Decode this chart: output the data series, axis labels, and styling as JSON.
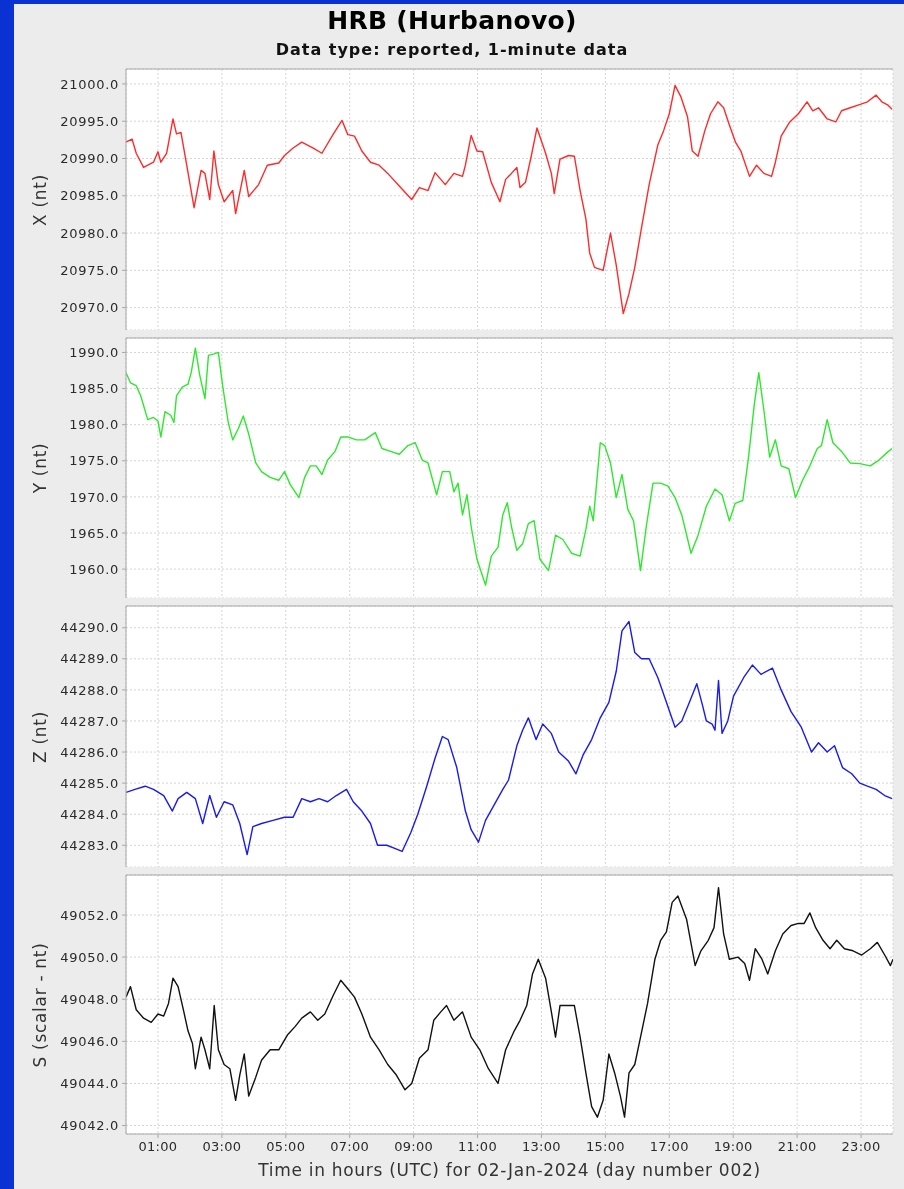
{
  "chart_data": [
    {
      "type": "line",
      "title": "HRB (Hurbanovo)",
      "subtitle": "Data type: reported, 1-minute data",
      "ylabel": "X (nt)",
      "tick_labels": "y",
      "grid": true,
      "xlim": [
        0,
        24
      ],
      "xticks": [
        {
          "value": 1,
          "label": null
        },
        {
          "value": 3,
          "label": null
        },
        {
          "value": 5,
          "label": null
        },
        {
          "value": 7,
          "label": null
        },
        {
          "value": 9,
          "label": null
        },
        {
          "value": 11,
          "label": null
        },
        {
          "value": 13,
          "label": null
        },
        {
          "value": 15,
          "label": null
        },
        {
          "value": 17,
          "label": null
        },
        {
          "value": 19,
          "label": null
        },
        {
          "value": 21,
          "label": null
        },
        {
          "value": 23,
          "label": null
        }
      ],
      "ylim": [
        20967,
        21002
      ],
      "yticks": [
        {
          "value": 20970,
          "label": "20970.0"
        },
        {
          "value": 20975,
          "label": "20975.0"
        },
        {
          "value": 20980,
          "label": "20980.0"
        },
        {
          "value": 20985,
          "label": "20985.0"
        },
        {
          "value": 20990,
          "label": "20990.0"
        },
        {
          "value": 20995,
          "label": "20995.0"
        },
        {
          "value": 21000,
          "label": "21000.0"
        }
      ],
      "x": [
        0,
        0.19,
        0.32,
        0.55,
        0.86,
        1.0,
        1.09,
        1.27,
        1.47,
        1.58,
        1.72,
        1.9,
        2.13,
        2.35,
        2.47,
        2.62,
        2.75,
        2.89,
        3.07,
        3.34,
        3.43,
        3.7,
        3.84,
        4.15,
        4.42,
        4.78,
        4.96,
        5.23,
        5.5,
        5.86,
        6.13,
        6.49,
        6.76,
        6.94,
        7.15,
        7.38,
        7.65,
        7.92,
        8.19,
        8.55,
        8.94,
        9.18,
        9.45,
        9.67,
        9.99,
        10.26,
        10.53,
        10.62,
        10.8,
        10.98,
        11.16,
        11.43,
        11.7,
        11.88,
        12.06,
        12.23,
        12.33,
        12.5,
        12.68,
        12.86,
        13.13,
        13.31,
        13.4,
        13.58,
        13.85,
        14.03,
        14.21,
        14.39,
        14.51,
        14.66,
        14.93,
        15.16,
        15.34,
        15.56,
        15.74,
        15.92,
        16.13,
        16.37,
        16.64,
        16.82,
        17.0,
        17.18,
        17.36,
        17.57,
        17.72,
        17.9,
        18.11,
        18.29,
        18.52,
        18.7,
        18.88,
        19.07,
        19.24,
        19.51,
        19.73,
        19.96,
        20.2,
        20.32,
        20.5,
        20.77,
        21.04,
        21.31,
        21.49,
        21.67,
        21.94,
        22.21,
        22.39,
        22.66,
        22.93,
        23.2,
        23.47,
        23.65,
        23.83,
        23.97
      ],
      "series": [
        {
          "color": "#ff2a2a",
          "values": [
            20992.2,
            20992.6,
            20990.7,
            20988.8,
            20989.5,
            20990.9,
            20989.5,
            20990.7,
            20995.3,
            20993.3,
            20993.5,
            20989.1,
            20983.4,
            20988.4,
            20988.0,
            20984.5,
            20991.0,
            20986.5,
            20984.2,
            20985.7,
            20982.6,
            20988.4,
            20984.9,
            20986.5,
            20989.1,
            20989.4,
            20990.4,
            20991.4,
            20992.2,
            20991.4,
            20990.7,
            20993.3,
            20995.1,
            20993.2,
            20993.0,
            20991.0,
            20989.5,
            20989.1,
            20988.0,
            20986.3,
            20984.5,
            20986.1,
            20985.7,
            20988.1,
            20986.5,
            20988.0,
            20987.6,
            20989.1,
            20993.1,
            20991.0,
            20990.9,
            20986.8,
            20984.2,
            20987.2,
            20988.0,
            20988.8,
            20986.1,
            20986.8,
            20990.3,
            20994.1,
            20990.7,
            20988.0,
            20985.3,
            20989.9,
            20990.4,
            20990.3,
            20985.7,
            20981.9,
            20977.3,
            20975.4,
            20975.0,
            20980.0,
            20975.7,
            20969.2,
            20971.9,
            20975.4,
            20980.7,
            20986.5,
            20991.8,
            20993.7,
            20996.0,
            20999.8,
            20998.3,
            20995.6,
            20991.0,
            20990.3,
            20993.7,
            20996.0,
            20997.6,
            20996.8,
            20994.5,
            20992.2,
            20991.0,
            20987.6,
            20989.1,
            20988.0,
            20987.6,
            20989.5,
            20993.0,
            20994.9,
            20996.0,
            20997.6,
            20996.4,
            20996.8,
            20995.3,
            20994.9,
            20996.4,
            20996.8,
            20997.2,
            20997.6,
            20998.5,
            20997.6,
            20997.2,
            20996.6
          ]
        }
      ]
    },
    {
      "type": "line",
      "ylabel": "Y (nt)",
      "tick_labels": "y",
      "grid": true,
      "xlim": [
        0,
        24
      ],
      "xticks": [
        {
          "value": 1,
          "label": null
        },
        {
          "value": 3,
          "label": null
        },
        {
          "value": 5,
          "label": null
        },
        {
          "value": 7,
          "label": null
        },
        {
          "value": 9,
          "label": null
        },
        {
          "value": 11,
          "label": null
        },
        {
          "value": 13,
          "label": null
        },
        {
          "value": 15,
          "label": null
        },
        {
          "value": 17,
          "label": null
        },
        {
          "value": 19,
          "label": null
        },
        {
          "value": 21,
          "label": null
        },
        {
          "value": 23,
          "label": null
        }
      ],
      "ylim": [
        1956,
        1992
      ],
      "yticks": [
        {
          "value": 1960,
          "label": "1960.0"
        },
        {
          "value": 1965,
          "label": "1965.0"
        },
        {
          "value": 1970,
          "label": "1970.0"
        },
        {
          "value": 1975,
          "label": "1975.0"
        },
        {
          "value": 1980,
          "label": "1980.0"
        },
        {
          "value": 1985,
          "label": "1985.0"
        },
        {
          "value": 1990,
          "label": "1990.0"
        }
      ],
      "x": [
        0,
        0.14,
        0.32,
        0.46,
        0.68,
        0.86,
        1.0,
        1.09,
        1.22,
        1.4,
        1.5,
        1.58,
        1.76,
        1.94,
        2.04,
        2.17,
        2.31,
        2.47,
        2.58,
        2.76,
        2.89,
        3.03,
        3.2,
        3.34,
        3.52,
        3.67,
        3.84,
        4.06,
        4.24,
        4.51,
        4.78,
        4.96,
        5.14,
        5.41,
        5.59,
        5.77,
        5.95,
        6.13,
        6.31,
        6.54,
        6.72,
        6.94,
        7.21,
        7.47,
        7.8,
        8.01,
        8.28,
        8.55,
        8.82,
        9.05,
        9.27,
        9.45,
        9.72,
        9.9,
        10.13,
        10.26,
        10.39,
        10.53,
        10.67,
        10.8,
        10.98,
        11.25,
        11.43,
        11.64,
        11.79,
        11.93,
        12.06,
        12.23,
        12.41,
        12.59,
        12.77,
        12.95,
        13.22,
        13.44,
        13.67,
        13.94,
        14.21,
        14.39,
        14.51,
        14.62,
        14.84,
        14.98,
        15.16,
        15.34,
        15.52,
        15.7,
        15.88,
        16.1,
        16.28,
        16.49,
        16.73,
        16.96,
        17.18,
        17.39,
        17.68,
        17.9,
        18.16,
        18.43,
        18.65,
        18.88,
        19.06,
        19.3,
        19.48,
        19.66,
        19.8,
        19.96,
        20.14,
        20.32,
        20.5,
        20.74,
        20.95,
        21.17,
        21.4,
        21.63,
        21.76,
        21.94,
        22.12,
        22.39,
        22.66,
        22.96,
        23.29,
        23.56,
        23.83,
        23.97
      ],
      "series": [
        {
          "color": "#2ee82e",
          "values": [
            1987.2,
            1985.8,
            1985.4,
            1984.0,
            1980.7,
            1981.0,
            1980.5,
            1978.3,
            1981.8,
            1981.3,
            1980.3,
            1984.0,
            1985.2,
            1985.6,
            1987.2,
            1990.6,
            1986.8,
            1983.6,
            1989.6,
            1989.8,
            1990.0,
            1985.2,
            1980.3,
            1977.9,
            1979.5,
            1981.2,
            1978.7,
            1974.7,
            1973.5,
            1972.7,
            1972.3,
            1973.5,
            1971.7,
            1969.9,
            1972.7,
            1974.3,
            1974.3,
            1973.1,
            1975.1,
            1976.3,
            1978.3,
            1978.3,
            1977.9,
            1977.9,
            1978.9,
            1976.7,
            1976.3,
            1975.9,
            1977.1,
            1977.5,
            1975.1,
            1974.7,
            1970.3,
            1973.5,
            1973.5,
            1970.7,
            1971.9,
            1967.5,
            1970.3,
            1965.9,
            1961.4,
            1957.8,
            1961.8,
            1963.0,
            1967.5,
            1969.2,
            1965.9,
            1962.6,
            1963.5,
            1966.3,
            1966.7,
            1961.4,
            1959.8,
            1964.7,
            1964.1,
            1962.2,
            1961.8,
            1965.5,
            1968.7,
            1966.7,
            1977.5,
            1977.1,
            1974.7,
            1969.9,
            1973.1,
            1968.3,
            1966.7,
            1959.8,
            1965.9,
            1971.9,
            1971.9,
            1971.5,
            1969.9,
            1967.5,
            1962.2,
            1964.7,
            1968.7,
            1971.1,
            1970.3,
            1966.7,
            1969.1,
            1969.5,
            1975.5,
            1982.8,
            1987.2,
            1982.0,
            1975.5,
            1977.9,
            1974.3,
            1973.9,
            1969.9,
            1972.3,
            1974.3,
            1976.7,
            1977.1,
            1980.7,
            1977.5,
            1976.3,
            1974.7,
            1974.6,
            1974.3,
            1975.1,
            1976.2,
            1976.7
          ]
        }
      ]
    },
    {
      "type": "line",
      "ylabel": "Z (nt)",
      "tick_labels": "y",
      "grid": true,
      "xlim": [
        0,
        24
      ],
      "xticks": [
        {
          "value": 1,
          "label": null
        },
        {
          "value": 3,
          "label": null
        },
        {
          "value": 5,
          "label": null
        },
        {
          "value": 7,
          "label": null
        },
        {
          "value": 9,
          "label": null
        },
        {
          "value": 11,
          "label": null
        },
        {
          "value": 13,
          "label": null
        },
        {
          "value": 15,
          "label": null
        },
        {
          "value": 17,
          "label": null
        },
        {
          "value": 19,
          "label": null
        },
        {
          "value": 21,
          "label": null
        },
        {
          "value": 23,
          "label": null
        }
      ],
      "ylim": [
        44282.3,
        44290.7
      ],
      "yticks": [
        {
          "value": 44283,
          "label": "44283.0"
        },
        {
          "value": 44284,
          "label": "44284.0"
        },
        {
          "value": 44285,
          "label": "44285.0"
        },
        {
          "value": 44286,
          "label": "44286.0"
        },
        {
          "value": 44287,
          "label": "44287.0"
        },
        {
          "value": 44288,
          "label": "44288.0"
        },
        {
          "value": 44289,
          "label": "44289.0"
        },
        {
          "value": 44290,
          "label": "44290.0"
        }
      ],
      "x": [
        0,
        0.28,
        0.6,
        0.86,
        1.18,
        1.45,
        1.63,
        1.9,
        2.17,
        2.4,
        2.62,
        2.83,
        3.07,
        3.34,
        3.56,
        3.79,
        3.97,
        4.24,
        4.6,
        4.96,
        5.23,
        5.5,
        5.77,
        6.04,
        6.31,
        6.58,
        6.9,
        7.11,
        7.38,
        7.65,
        7.87,
        8.16,
        8.41,
        8.64,
        8.91,
        9.13,
        9.41,
        9.67,
        9.9,
        10.08,
        10.35,
        10.62,
        10.8,
        11.03,
        11.25,
        11.52,
        11.79,
        11.97,
        12.23,
        12.41,
        12.59,
        12.83,
        13.04,
        13.31,
        13.54,
        13.85,
        14.08,
        14.3,
        14.57,
        14.84,
        15.11,
        15.34,
        15.52,
        15.74,
        15.92,
        16.13,
        16.37,
        16.64,
        16.91,
        17.18,
        17.39,
        17.63,
        17.86,
        18.04,
        18.16,
        18.34,
        18.43,
        18.54,
        18.65,
        18.83,
        19.01,
        19.33,
        19.6,
        19.87,
        20.23,
        20.5,
        20.81,
        21.13,
        21.45,
        21.67,
        21.94,
        22.17,
        22.42,
        22.71,
        22.96,
        23.2,
        23.47,
        23.74,
        23.97
      ],
      "series": [
        {
          "color": "#1a1aee",
          "values": [
            44284.7,
            44284.8,
            44284.9,
            44284.8,
            44284.6,
            44284.1,
            44284.5,
            44284.7,
            44284.5,
            44283.7,
            44284.6,
            44283.9,
            44284.4,
            44284.3,
            44283.7,
            44282.7,
            44283.6,
            44283.7,
            44283.8,
            44283.9,
            44283.9,
            44284.5,
            44284.4,
            44284.5,
            44284.4,
            44284.6,
            44284.8,
            44284.4,
            44284.1,
            44283.7,
            44283.0,
            44283.0,
            44282.9,
            44282.8,
            44283.4,
            44284.0,
            44284.9,
            44285.8,
            44286.5,
            44286.4,
            44285.5,
            44284.1,
            44283.5,
            44283.1,
            44283.8,
            44284.3,
            44284.8,
            44285.1,
            44286.2,
            44286.7,
            44287.1,
            44286.4,
            44286.9,
            44286.6,
            44286.0,
            44285.7,
            44285.3,
            44285.9,
            44286.4,
            44287.1,
            44287.6,
            44288.6,
            44289.9,
            44290.2,
            44289.2,
            44289.0,
            44289.0,
            44288.4,
            44287.6,
            44286.8,
            44287.0,
            44287.6,
            44288.2,
            44287.5,
            44287.0,
            44286.9,
            44286.7,
            44288.3,
            44286.6,
            44287.0,
            44287.8,
            44288.4,
            44288.8,
            44288.5,
            44288.7,
            44288.0,
            44287.3,
            44286.8,
            44286.0,
            44286.3,
            44286.0,
            44286.2,
            44285.5,
            44285.3,
            44285.0,
            44284.9,
            44284.8,
            44284.6,
            44284.5
          ]
        }
      ]
    },
    {
      "type": "line",
      "ylabel": "S (scalar - nt)",
      "xlabel": "Time in hours (UTC) for 02-Jan-2024 (day number 002)",
      "grid": true,
      "xlim": [
        0,
        24
      ],
      "xticks": [
        {
          "value": 1,
          "label": "01:00"
        },
        {
          "value": 3,
          "label": "03:00"
        },
        {
          "value": 5,
          "label": "05:00"
        },
        {
          "value": 7,
          "label": "07:00"
        },
        {
          "value": 9,
          "label": "09:00"
        },
        {
          "value": 11,
          "label": "11:00"
        },
        {
          "value": 13,
          "label": "13:00"
        },
        {
          "value": 15,
          "label": "15:00"
        },
        {
          "value": 17,
          "label": "17:00"
        },
        {
          "value": 19,
          "label": "19:00"
        },
        {
          "value": 21,
          "label": "21:00"
        },
        {
          "value": 23,
          "label": "23:00"
        }
      ],
      "ylim": [
        49041.6,
        49053.9
      ],
      "yticks": [
        {
          "value": 49042,
          "label": "49042.0"
        },
        {
          "value": 49044,
          "label": "49044.0"
        },
        {
          "value": 49046,
          "label": "49046.0"
        },
        {
          "value": 49048,
          "label": "49048.0"
        },
        {
          "value": 49050,
          "label": "49050.0"
        },
        {
          "value": 49052,
          "label": "49052.0"
        }
      ],
      "x": [
        0,
        0.14,
        0.32,
        0.55,
        0.79,
        1.0,
        1.18,
        1.33,
        1.47,
        1.63,
        1.81,
        1.94,
        2.08,
        2.17,
        2.35,
        2.47,
        2.62,
        2.76,
        2.89,
        3.07,
        3.25,
        3.43,
        3.56,
        3.7,
        3.84,
        4.06,
        4.24,
        4.51,
        4.78,
        5.05,
        5.29,
        5.5,
        5.77,
        6.0,
        6.22,
        6.49,
        6.72,
        6.94,
        7.15,
        7.38,
        7.65,
        7.92,
        8.19,
        8.46,
        8.73,
        8.94,
        9.18,
        9.45,
        9.63,
        9.85,
        10.03,
        10.26,
        10.53,
        10.8,
        11.07,
        11.34,
        11.64,
        11.88,
        12.15,
        12.33,
        12.54,
        12.72,
        12.9,
        13.13,
        13.31,
        13.44,
        13.58,
        13.85,
        14.03,
        14.21,
        14.39,
        14.57,
        14.75,
        14.93,
        15.11,
        15.29,
        15.47,
        15.6,
        15.74,
        15.92,
        16.1,
        16.32,
        16.55,
        16.73,
        16.91,
        17.09,
        17.27,
        17.54,
        17.81,
        17.99,
        18.22,
        18.4,
        18.54,
        18.7,
        18.88,
        19.15,
        19.36,
        19.51,
        19.69,
        19.9,
        20.08,
        20.32,
        20.55,
        20.81,
        21.04,
        21.22,
        21.4,
        21.58,
        21.81,
        22.03,
        22.24,
        22.48,
        22.75,
        23.02,
        23.29,
        23.51,
        23.74,
        23.92,
        24.0
      ],
      "series": [
        {
          "color": "#111111",
          "values": [
            49048.1,
            49048.6,
            49047.5,
            49047.1,
            49046.9,
            49047.3,
            49047.2,
            49047.8,
            49049.0,
            49048.6,
            49047.4,
            49046.5,
            49045.9,
            49044.7,
            49046.2,
            49045.6,
            49044.7,
            49047.7,
            49045.6,
            49044.9,
            49044.7,
            49043.2,
            49044.4,
            49045.4,
            49043.4,
            49044.3,
            49045.1,
            49045.6,
            49045.6,
            49046.3,
            49046.7,
            49047.1,
            49047.4,
            49047.0,
            49047.3,
            49048.2,
            49048.9,
            49048.5,
            49048.1,
            49047.3,
            49046.2,
            49045.6,
            49044.9,
            49044.4,
            49043.7,
            49044.0,
            49045.2,
            49045.6,
            49047.0,
            49047.4,
            49047.7,
            49047.0,
            49047.4,
            49046.2,
            49045.6,
            49044.7,
            49044.0,
            49045.6,
            49046.5,
            49047.0,
            49047.7,
            49049.2,
            49049.9,
            49049.0,
            49047.4,
            49046.2,
            49047.7,
            49047.7,
            49047.7,
            49046.2,
            49044.5,
            49042.9,
            49042.4,
            49043.2,
            49045.4,
            49044.5,
            49043.4,
            49042.4,
            49044.5,
            49044.9,
            49046.2,
            49047.8,
            49049.9,
            49050.8,
            49051.2,
            49052.6,
            49052.9,
            49051.8,
            49049.6,
            49050.3,
            49050.8,
            49051.4,
            49053.3,
            49051.1,
            49049.9,
            49050.0,
            49049.7,
            49048.9,
            49050.4,
            49049.9,
            49049.2,
            49050.3,
            49051.1,
            49051.5,
            49051.6,
            49051.6,
            49052.1,
            49051.4,
            49050.8,
            49050.4,
            49050.8,
            49050.4,
            49050.3,
            49050.1,
            49050.4,
            49050.7,
            49050.1,
            49049.6,
            49049.9
          ]
        }
      ]
    }
  ]
}
